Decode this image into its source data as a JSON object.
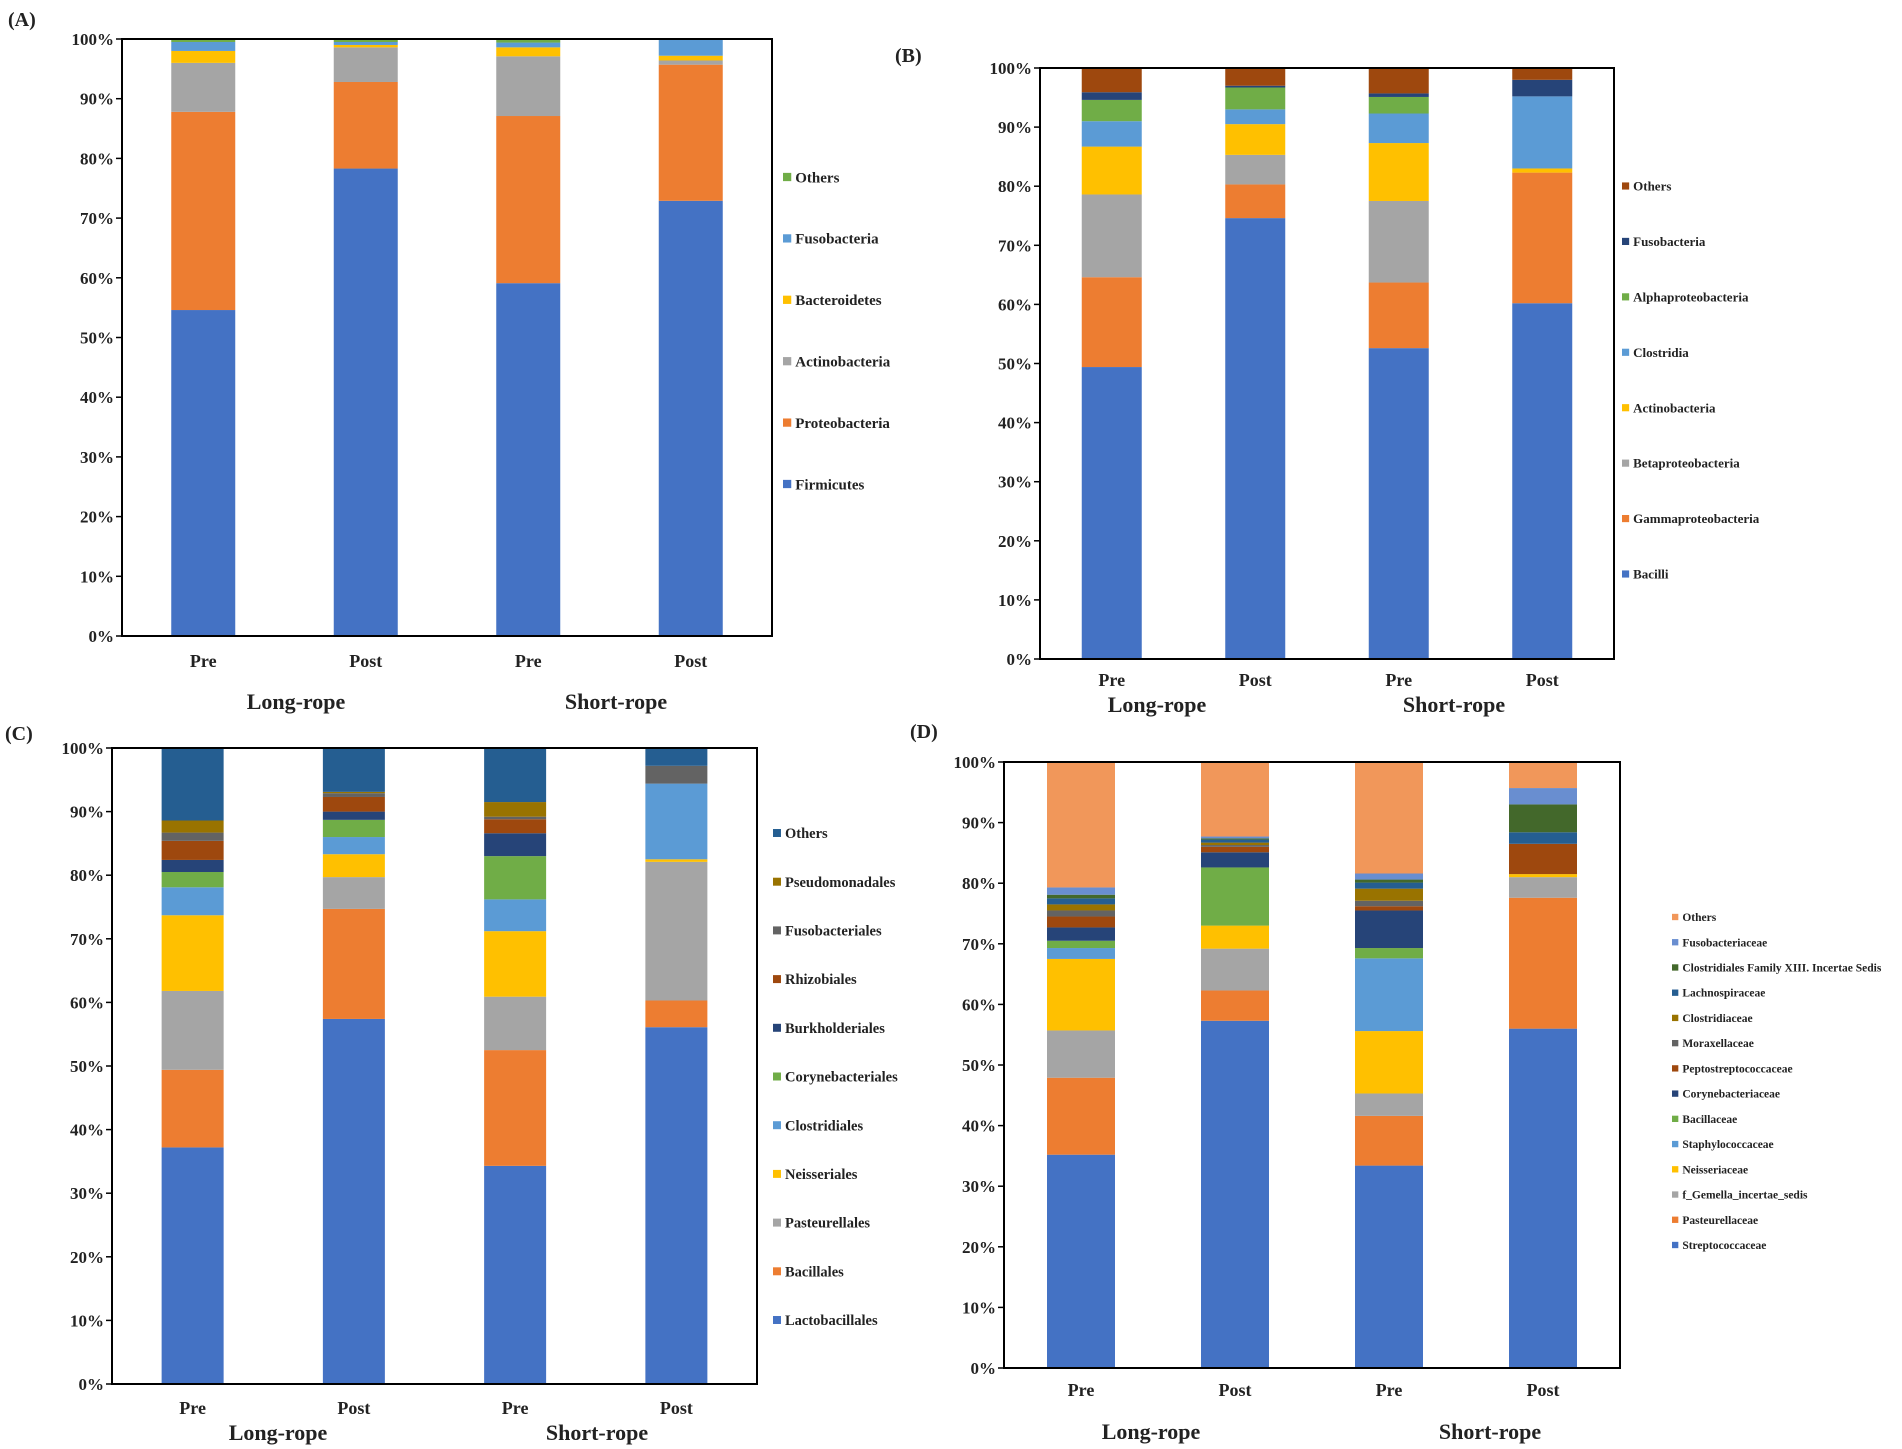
{
  "colors": {
    "blue": "#4472c4",
    "orange": "#ed7d31",
    "gray": "#a5a5a5",
    "yellow": "#ffc000",
    "lightblue": "#5b9bd5",
    "green": "#70ad47",
    "navy": "#264478",
    "rust": "#9e480e",
    "darkgray": "#636363",
    "olive": "#997300",
    "steel": "#255e91",
    "darkgreen": "#43682b",
    "peach": "#f1975a",
    "slateblue": "#698ed0"
  },
  "chart_data": [
    {
      "panel": "(A)",
      "type": "bar",
      "stacked": true,
      "categories": [
        "Pre",
        "Post",
        "Pre",
        "Post"
      ],
      "groups": [
        "Long-rope",
        "Short-rope"
      ],
      "yticks": [
        "0%",
        "10%",
        "20%",
        "30%",
        "40%",
        "50%",
        "60%",
        "70%",
        "80%",
        "90%",
        "100%"
      ],
      "ylim": [
        0,
        100
      ],
      "series": [
        {
          "name": "Firmicutes",
          "color": "#4472c4",
          "values": [
            54.6,
            78.3,
            59.1,
            72.9
          ]
        },
        {
          "name": "Proteobacteria",
          "color": "#ed7d31",
          "values": [
            33.2,
            14.5,
            28.0,
            22.8
          ]
        },
        {
          "name": "Actinobacteria",
          "color": "#a5a5a5",
          "values": [
            8.2,
            5.8,
            10.0,
            0.7
          ]
        },
        {
          "name": "Bacteroidetes",
          "color": "#ffc000",
          "values": [
            2.0,
            0.4,
            1.5,
            0.8
          ]
        },
        {
          "name": "Fusobacteria",
          "color": "#5b9bd5",
          "values": [
            1.5,
            0.5,
            0.8,
            2.8
          ]
        },
        {
          "name": "Others",
          "color": "#70ad47",
          "values": [
            0.5,
            0.5,
            0.6,
            0.0
          ]
        }
      ]
    },
    {
      "panel": "(B)",
      "type": "bar",
      "stacked": true,
      "categories": [
        "Pre",
        "Post",
        "Pre",
        "Post"
      ],
      "groups": [
        "Long-rope",
        "Short-rope"
      ],
      "yticks": [
        "0%",
        "10%",
        "20%",
        "30%",
        "40%",
        "50%",
        "60%",
        "70%",
        "80%",
        "90%",
        "100%"
      ],
      "ylim": [
        0,
        100
      ],
      "series": [
        {
          "name": "Bacilli",
          "color": "#4472c4",
          "values": [
            49.4,
            74.6,
            52.6,
            60.2
          ]
        },
        {
          "name": "Gammaproteobacteria",
          "color": "#ed7d31",
          "values": [
            15.2,
            5.7,
            11.1,
            22.1
          ]
        },
        {
          "name": "Betaproteobacteria",
          "color": "#a5a5a5",
          "values": [
            14.0,
            5.0,
            13.8,
            0.0
          ]
        },
        {
          "name": "Actinobacteria",
          "color": "#ffc000",
          "values": [
            8.1,
            5.2,
            9.8,
            0.7
          ]
        },
        {
          "name": "Clostridia",
          "color": "#5b9bd5",
          "values": [
            4.3,
            2.5,
            5.0,
            12.2
          ]
        },
        {
          "name": "Alphaproteobacteria",
          "color": "#70ad47",
          "values": [
            3.6,
            3.7,
            2.8,
            0.0
          ]
        },
        {
          "name": "Fusobacteria",
          "color": "#264478",
          "values": [
            1.3,
            0.3,
            0.6,
            2.8
          ]
        },
        {
          "name": "Others",
          "color": "#9e480e",
          "values": [
            4.1,
            3.0,
            4.3,
            2.0
          ]
        }
      ]
    },
    {
      "panel": "(C)",
      "type": "bar",
      "stacked": true,
      "categories": [
        "Pre",
        "Post",
        "Pre",
        "Post"
      ],
      "groups": [
        "Long-rope",
        "Short-rope"
      ],
      "yticks": [
        "0%",
        "10%",
        "20%",
        "30%",
        "40%",
        "50%",
        "60%",
        "70%",
        "80%",
        "90%",
        "100%"
      ],
      "ylim": [
        0,
        100
      ],
      "series": [
        {
          "name": "Lactobacillales",
          "color": "#4472c4",
          "values": [
            37.2,
            57.4,
            34.3,
            56.1
          ]
        },
        {
          "name": "Bacillales",
          "color": "#ed7d31",
          "values": [
            12.2,
            17.3,
            18.2,
            4.2
          ]
        },
        {
          "name": "Pasteurellales",
          "color": "#a5a5a5",
          "values": [
            12.4,
            5.0,
            8.4,
            21.8
          ]
        },
        {
          "name": "Neisseriales",
          "color": "#ffc000",
          "values": [
            11.9,
            3.6,
            10.3,
            0.4
          ]
        },
        {
          "name": "Clostridiales",
          "color": "#5b9bd5",
          "values": [
            4.4,
            2.7,
            5.0,
            11.9
          ]
        },
        {
          "name": "Corynebacteriales",
          "color": "#70ad47",
          "values": [
            2.4,
            2.7,
            6.8,
            0.0
          ]
        },
        {
          "name": "Burkholderiales",
          "color": "#264478",
          "values": [
            1.9,
            1.3,
            3.6,
            0.0
          ]
        },
        {
          "name": "Rhizobiales",
          "color": "#9e480e",
          "values": [
            3.0,
            2.3,
            2.2,
            0.0
          ]
        },
        {
          "name": "Fusobacteriales",
          "color": "#636363",
          "values": [
            1.3,
            0.6,
            0.4,
            2.8
          ]
        },
        {
          "name": "Pseudomonadales",
          "color": "#997300",
          "values": [
            1.9,
            0.2,
            2.3,
            0.0
          ]
        },
        {
          "name": "Others",
          "color": "#255e91",
          "values": [
            11.4,
            7.6,
            8.5,
            2.8
          ]
        }
      ]
    },
    {
      "panel": "(D)",
      "type": "bar",
      "stacked": true,
      "categories": [
        "Pre",
        "Post",
        "Pre",
        "Post"
      ],
      "groups": [
        "Long-rope",
        "Short-rope"
      ],
      "yticks": [
        "0%",
        "10%",
        "20%",
        "30%",
        "40%",
        "50%",
        "60%",
        "70%",
        "80%",
        "90%",
        "100%"
      ],
      "ylim": [
        0,
        100
      ],
      "series": [
        {
          "name": "Streptococcaceae",
          "color": "#4472c4",
          "values": [
            35.2,
            57.3,
            33.4,
            56.0
          ]
        },
        {
          "name": "Pasteurellaceae",
          "color": "#ed7d31",
          "values": [
            12.7,
            5.0,
            8.2,
            21.6
          ]
        },
        {
          "name": "f_Gemella_incertae_sedis",
          "color": "#a5a5a5",
          "values": [
            7.8,
            6.9,
            3.7,
            3.4
          ]
        },
        {
          "name": "Neisseriaceae",
          "color": "#ffc000",
          "values": [
            11.8,
            3.8,
            10.3,
            0.5
          ]
        },
        {
          "name": "Staphylococcaceae",
          "color": "#5b9bd5",
          "values": [
            1.8,
            0.0,
            12.0,
            0.0
          ]
        },
        {
          "name": "Bacillaceae",
          "color": "#70ad47",
          "values": [
            1.2,
            9.6,
            1.7,
            0.0
          ]
        },
        {
          "name": "Corynebacteriaceae",
          "color": "#264478",
          "values": [
            2.2,
            2.5,
            6.2,
            0.0
          ]
        },
        {
          "name": "Peptostreptococcaceae",
          "color": "#9e480e",
          "values": [
            1.8,
            0.9,
            0.7,
            5.0
          ]
        },
        {
          "name": "Moraxellaceae",
          "color": "#636363",
          "values": [
            1.0,
            0.3,
            0.9,
            0.0
          ]
        },
        {
          "name": "Clostridiaceae",
          "color": "#997300",
          "values": [
            1.0,
            0.4,
            2.0,
            0.0
          ]
        },
        {
          "name": "Lachnospiraceae",
          "color": "#255e91",
          "values": [
            1.0,
            0.5,
            1.0,
            1.9
          ]
        },
        {
          "name": "Clostridiales Family XIII. Incertae Sedis",
          "color": "#43682b",
          "values": [
            0.6,
            0.2,
            0.5,
            4.6
          ]
        },
        {
          "name": "Fusobacteriaceae",
          "color": "#698ed0",
          "values": [
            1.2,
            0.3,
            1.0,
            2.7
          ]
        },
        {
          "name": "Others",
          "color": "#f1975a",
          "values": [
            20.7,
            12.3,
            18.4,
            4.3
          ]
        }
      ]
    }
  ]
}
